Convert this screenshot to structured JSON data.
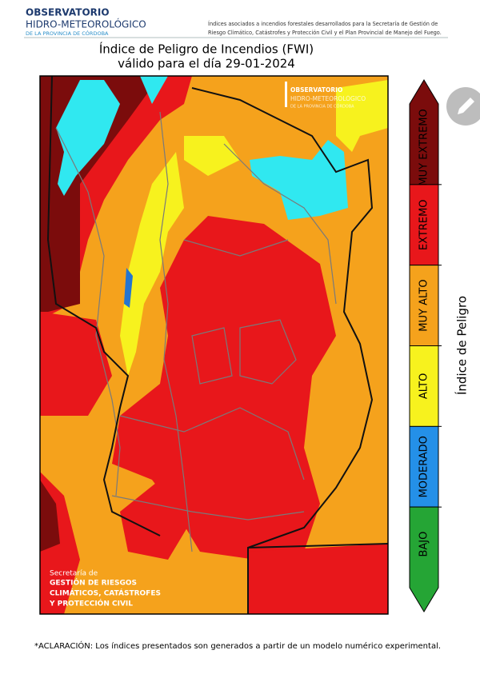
{
  "header": {
    "org_line1": "OBSERVATORIO",
    "org_line2": "HIDRO-METEOROLÓGICO",
    "org_line3": "DE LA PROVINCIA DE CÓRDOBA",
    "description_line1": "Índices asociados a incendios forestales desarrollados para la Secretaría de Gestión de",
    "description_line2": "Riesgo Climático, Catástrofes y Protección Civil y el Plan Provincial de Manejo del Fuego."
  },
  "map": {
    "title": "Índice de Peligro de Incendios (FWI)",
    "subtitle": "válido para el día 29-01-2024",
    "watermark": [
      "OBSERVATORIO",
      "HIDRO-METEOROLÓGICO",
      "DE LA PROVINCIA DE CÓRDOBA"
    ],
    "logo": [
      "Secretaría de",
      "GESTIÓN DE RIESGOS",
      "CLIMÁTICOS, CATÁSTROFES",
      "Y PROTECCIÓN CIVIL"
    ]
  },
  "legend": {
    "title": "Índice de Peligro",
    "classes": [
      {
        "label": "MUY EXTREMO",
        "color": "#7b0c0c"
      },
      {
        "label": "EXTREMO",
        "color": "#e8171b"
      },
      {
        "label": "MUY ALTO",
        "color": "#f5a21c"
      },
      {
        "label": "ALTO",
        "color": "#f7f21e"
      },
      {
        "label": "MODERADO",
        "color": "#2490e8"
      },
      {
        "label": "BAJO",
        "color": "#25a535"
      }
    ]
  },
  "footer": {
    "note": "*ACLARACIÓN: Los índices presentados son generados a partir de un modelo numérico experimental."
  }
}
